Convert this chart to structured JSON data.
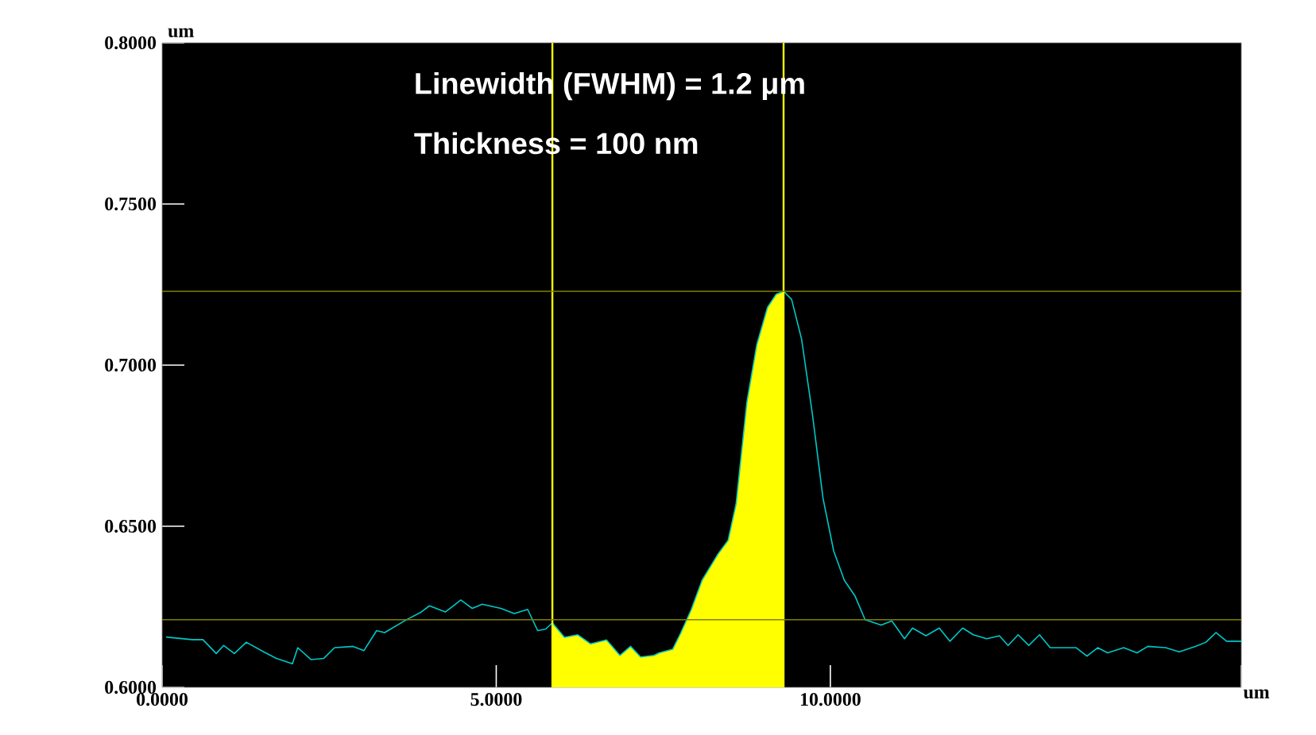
{
  "chart_data": {
    "type": "line",
    "xlabel": "um",
    "ylabel": "um",
    "xlim": [
      0,
      16.15
    ],
    "ylim": [
      0.6,
      0.8
    ],
    "xticks": [
      {
        "value": 0,
        "label": "0.0000"
      },
      {
        "value": 5,
        "label": "5.0000"
      },
      {
        "value": 10,
        "label": "10.0000"
      },
      {
        "value": 16.15,
        "label": null
      }
    ],
    "yticks": [
      {
        "value": 0.6,
        "label": "0.6000"
      },
      {
        "value": 0.65,
        "label": "0.6500"
      },
      {
        "value": 0.7,
        "label": "0.7000"
      },
      {
        "value": 0.75,
        "label": "0.7500"
      },
      {
        "value": 0.8,
        "label": "0.8000"
      }
    ],
    "series": [
      {
        "type": "area",
        "color": "#ffff00",
        "x": [
          5.84,
          6.02,
          6.22,
          6.41,
          6.65,
          6.85,
          7.01,
          7.16,
          7.36,
          7.44,
          7.64,
          7.76,
          7.92,
          8.08,
          8.32,
          8.47,
          8.59,
          8.75,
          8.9,
          9.06,
          9.19,
          9.3
        ],
        "values": [
          0.62,
          0.6155,
          0.6163,
          0.6135,
          0.6147,
          0.6099,
          0.6127,
          0.6094,
          0.6099,
          0.6107,
          0.6118,
          0.6168,
          0.6242,
          0.6332,
          0.6414,
          0.6456,
          0.657,
          0.6883,
          0.7064,
          0.7179,
          0.722,
          0.7229
        ]
      },
      {
        "color": "#00c8c8",
        "x": [
          0.06,
          0.45,
          0.61,
          0.81,
          0.92,
          1.08,
          1.26,
          1.52,
          1.71,
          1.95,
          2.03,
          2.23,
          2.42,
          2.58,
          2.86,
          3.02,
          3.21,
          3.33,
          3.65,
          3.88,
          4.0,
          4.24,
          4.47,
          4.64,
          4.79,
          5.07,
          5.27,
          5.47,
          5.62,
          5.74,
          5.84,
          6.02,
          6.22,
          6.41,
          6.65,
          6.85,
          7.01,
          7.16,
          7.36,
          7.44,
          7.64,
          7.76,
          7.92,
          8.08,
          8.32,
          8.47,
          8.59,
          8.75,
          8.9,
          9.06,
          9.19,
          9.3,
          9.42,
          9.57,
          9.73,
          9.89,
          10.05,
          10.21,
          10.37,
          10.52,
          10.76,
          10.92,
          11.11,
          11.23,
          11.43,
          11.63,
          11.79,
          11.98,
          12.14,
          12.34,
          12.53,
          12.66,
          12.81,
          12.97,
          13.13,
          13.29,
          13.68,
          13.84,
          14.0,
          14.15,
          14.39,
          14.59,
          14.75,
          15.02,
          15.22,
          15.46,
          15.62,
          15.77,
          15.93,
          16.15
        ],
        "values": [
          0.6156,
          0.6148,
          0.6148,
          0.6105,
          0.613,
          0.6105,
          0.614,
          0.611,
          0.609,
          0.6073,
          0.6123,
          0.6086,
          0.609,
          0.6123,
          0.6127,
          0.6114,
          0.6176,
          0.617,
          0.6209,
          0.6234,
          0.6253,
          0.6234,
          0.6271,
          0.6245,
          0.6258,
          0.6245,
          0.6229,
          0.6242,
          0.6176,
          0.6181,
          0.62,
          0.6155,
          0.6163,
          0.6135,
          0.6147,
          0.6099,
          0.6127,
          0.6094,
          0.6099,
          0.6107,
          0.6118,
          0.6168,
          0.6242,
          0.6332,
          0.6414,
          0.6456,
          0.657,
          0.6883,
          0.7064,
          0.7179,
          0.722,
          0.7229,
          0.7204,
          0.708,
          0.685,
          0.6587,
          0.6423,
          0.6332,
          0.6283,
          0.621,
          0.6193,
          0.6206,
          0.6151,
          0.6184,
          0.616,
          0.6184,
          0.6143,
          0.6184,
          0.6163,
          0.6151,
          0.616,
          0.613,
          0.6163,
          0.613,
          0.6163,
          0.6123,
          0.6123,
          0.6097,
          0.6123,
          0.6107,
          0.6123,
          0.6107,
          0.6127,
          0.6123,
          0.611,
          0.6127,
          0.614,
          0.617,
          0.6143,
          0.6143
        ]
      }
    ],
    "ref_lines": [
      {
        "axis": "x",
        "value": 5.84,
        "color": "#ffff00"
      },
      {
        "axis": "x",
        "value": 9.3,
        "color": "#ffff00"
      },
      {
        "axis": "y",
        "value": 0.7229,
        "color": "#808000"
      },
      {
        "axis": "y",
        "value": 0.621,
        "color": "#808000"
      }
    ],
    "annotations": [
      "Linewidth (FWHM) = 1.2 μm",
      "Thickness = 100 nm"
    ]
  }
}
